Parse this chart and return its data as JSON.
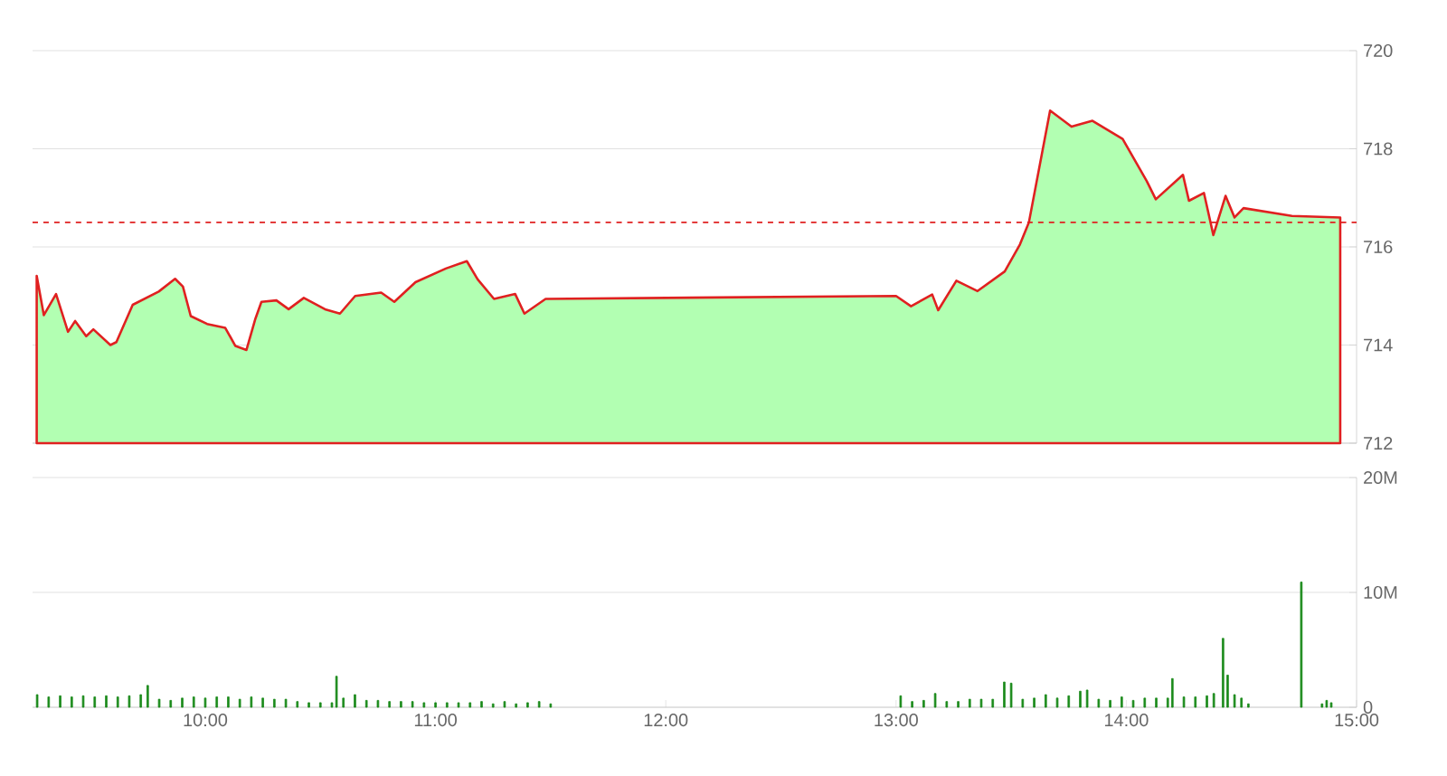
{
  "chart_data": [
    {
      "type": "area",
      "xlim": [
        9.25,
        15.0
      ],
      "ylim": [
        712,
        720
      ],
      "yticks": [
        712,
        714,
        716,
        718,
        720
      ],
      "grid": "y",
      "tick_labels": "y",
      "ref_lines": [
        {
          "axis": "y",
          "value": 716.5,
          "color": "#e02020",
          "line_style": "dashed"
        }
      ],
      "series": [
        {
          "color": "#e02020",
          "x": [
            9.268,
            9.299,
            9.352,
            9.404,
            9.435,
            9.483,
            9.514,
            9.588,
            9.614,
            9.685,
            9.798,
            9.869,
            9.903,
            9.937,
            10.008,
            10.087,
            10.131,
            10.179,
            10.218,
            10.244,
            10.309,
            10.362,
            10.428,
            10.52,
            10.585,
            10.651,
            10.764,
            10.821,
            10.913,
            11.045,
            11.136,
            11.183,
            11.254,
            11.346,
            11.386,
            11.478,
            13.0,
            13.065,
            13.157,
            13.183,
            13.262,
            13.354,
            13.472,
            13.538,
            13.577,
            13.669,
            13.762,
            13.853,
            13.984,
            14.089,
            14.128,
            14.246,
            14.272,
            14.337,
            14.378,
            14.431,
            14.47,
            14.509,
            14.719,
            14.929
          ],
          "values": [
            715.41,
            714.61,
            715.04,
            714.27,
            714.49,
            714.18,
            714.32,
            714.0,
            714.06,
            714.82,
            715.09,
            715.35,
            715.19,
            714.59,
            714.43,
            714.35,
            713.98,
            713.9,
            714.54,
            714.88,
            714.91,
            714.73,
            714.96,
            714.73,
            714.64,
            715.0,
            715.07,
            714.88,
            715.28,
            715.56,
            715.71,
            715.34,
            714.94,
            715.04,
            714.64,
            714.94,
            715.0,
            714.79,
            715.03,
            714.71,
            715.31,
            715.1,
            715.5,
            716.05,
            716.5,
            718.78,
            718.45,
            718.57,
            718.2,
            717.34,
            716.97,
            717.47,
            716.94,
            717.1,
            716.24,
            717.04,
            716.6,
            716.79,
            716.63,
            716.6
          ]
        }
      ]
    },
    {
      "type": "bar",
      "xlim": [
        9.25,
        15.0
      ],
      "ylim": [
        0,
        20000000
      ],
      "grid": "y",
      "color": "#1a8a1a",
      "xticks": [
        {
          "value": 10,
          "label": "10:00"
        },
        {
          "value": 11,
          "label": "11:00"
        },
        {
          "value": 12,
          "label": "12:00"
        },
        {
          "value": 13,
          "label": "13:00"
        },
        {
          "value": 14,
          "label": "14:00"
        },
        {
          "value": 15,
          "label": "15:00"
        }
      ],
      "yticks": [
        0,
        {
          "value": 10000000,
          "label": "10M"
        },
        {
          "value": 20000000,
          "label": "20M"
        }
      ],
      "x": [
        9.27,
        9.32,
        9.37,
        9.42,
        9.47,
        9.52,
        9.57,
        9.62,
        9.67,
        9.72,
        9.75,
        9.8,
        9.85,
        9.9,
        9.95,
        10.0,
        10.05,
        10.1,
        10.15,
        10.2,
        10.25,
        10.3,
        10.35,
        10.4,
        10.45,
        10.5,
        10.55,
        10.57,
        10.6,
        10.65,
        10.7,
        10.75,
        10.8,
        10.85,
        10.9,
        10.95,
        11.0,
        11.05,
        11.1,
        11.15,
        11.2,
        11.25,
        11.3,
        11.35,
        11.4,
        11.45,
        11.5,
        13.02,
        13.07,
        13.12,
        13.17,
        13.22,
        13.27,
        13.32,
        13.37,
        13.42,
        13.47,
        13.5,
        13.55,
        13.6,
        13.65,
        13.7,
        13.75,
        13.8,
        13.83,
        13.88,
        13.93,
        13.98,
        14.03,
        14.08,
        14.13,
        14.18,
        14.2,
        14.25,
        14.3,
        14.35,
        14.38,
        14.42,
        14.44,
        14.47,
        14.5,
        14.53,
        14.76,
        14.85,
        14.87,
        14.89
      ],
      "values": [
        1100000,
        900000,
        1000000,
        900000,
        1000000,
        900000,
        1000000,
        900000,
        1000000,
        1100000,
        1900000,
        700000,
        600000,
        800000,
        900000,
        800000,
        900000,
        900000,
        700000,
        900000,
        800000,
        700000,
        700000,
        500000,
        400000,
        400000,
        400000,
        2700000,
        800000,
        1100000,
        600000,
        600000,
        500000,
        500000,
        500000,
        400000,
        400000,
        400000,
        400000,
        400000,
        500000,
        300000,
        500000,
        300000,
        400000,
        500000,
        300000,
        1000000,
        500000,
        600000,
        1200000,
        500000,
        500000,
        700000,
        700000,
        700000,
        2200000,
        2100000,
        700000,
        800000,
        1100000,
        800000,
        1000000,
        1400000,
        1500000,
        700000,
        600000,
        900000,
        600000,
        800000,
        800000,
        800000,
        2500000,
        900000,
        900000,
        1000000,
        1200000,
        6000000,
        2800000,
        1100000,
        800000,
        300000,
        10900000,
        300000,
        600000,
        400000
      ]
    }
  ]
}
